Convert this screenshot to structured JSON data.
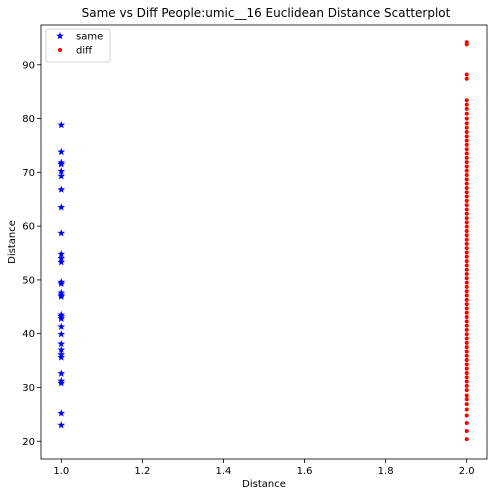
{
  "chart_data": {
    "type": "scatter",
    "title": "Same vs Diff People:umic__16 Euclidean Distance Scatterplot",
    "xlabel": "Distance",
    "ylabel": "Distance",
    "xlim": [
      0.95,
      2.05
    ],
    "ylim": [
      16.7,
      97.4
    ],
    "x_ticks": [
      1.0,
      1.2,
      1.4,
      1.6,
      1.8,
      2.0
    ],
    "x_tick_labels": [
      "1.0",
      "1.2",
      "1.4",
      "1.6",
      "1.8",
      "2.0"
    ],
    "y_ticks": [
      20,
      30,
      40,
      50,
      60,
      70,
      80,
      90
    ],
    "y_tick_labels": [
      "20",
      "30",
      "40",
      "50",
      "60",
      "70",
      "80",
      "90"
    ],
    "grid": false,
    "legend_position": "top-left",
    "series": [
      {
        "name": "same",
        "marker": "star",
        "color": "#0000ff",
        "x": 1.0,
        "values": [
          78.8,
          73.8,
          71.8,
          71.5,
          70.2,
          69.3,
          66.8,
          63.5,
          58.7,
          54.8,
          54.0,
          53.3,
          49.6,
          49.3,
          47.6,
          47.2,
          46.9,
          43.5,
          43.2,
          42.8,
          41.3,
          39.9,
          38.1,
          37.0,
          36.1,
          35.6,
          32.6,
          31.2,
          30.8,
          25.2,
          23.0
        ]
      },
      {
        "name": "diff",
        "marker": "dot",
        "color": "#ff0000",
        "x": 2.0,
        "values": [
          94.2,
          93.8,
          88.2,
          87.4,
          83.4,
          82.6,
          81.8,
          80.9,
          80.0,
          79.1,
          78.3,
          77.5,
          76.7,
          75.9,
          75.1,
          74.3,
          73.5,
          72.7,
          71.9,
          71.1,
          70.3,
          69.5,
          68.7,
          67.9,
          67.1,
          66.3,
          65.5,
          64.7,
          63.9,
          63.1,
          62.3,
          61.5,
          60.7,
          59.9,
          59.1,
          58.3,
          57.5,
          56.7,
          55.9,
          55.1,
          54.3,
          53.5,
          52.7,
          51.9,
          51.1,
          50.3,
          49.5,
          48.7,
          47.9,
          47.1,
          46.3,
          45.5,
          44.7,
          43.9,
          43.1,
          42.3,
          41.5,
          40.7,
          39.9,
          39.1,
          38.3,
          37.5,
          36.7,
          35.9,
          35.1,
          34.3,
          33.5,
          32.7,
          31.9,
          31.1,
          30.3,
          29.5,
          28.5,
          27.8,
          26.9,
          25.9,
          24.8,
          23.4,
          21.9,
          20.4
        ]
      }
    ]
  }
}
